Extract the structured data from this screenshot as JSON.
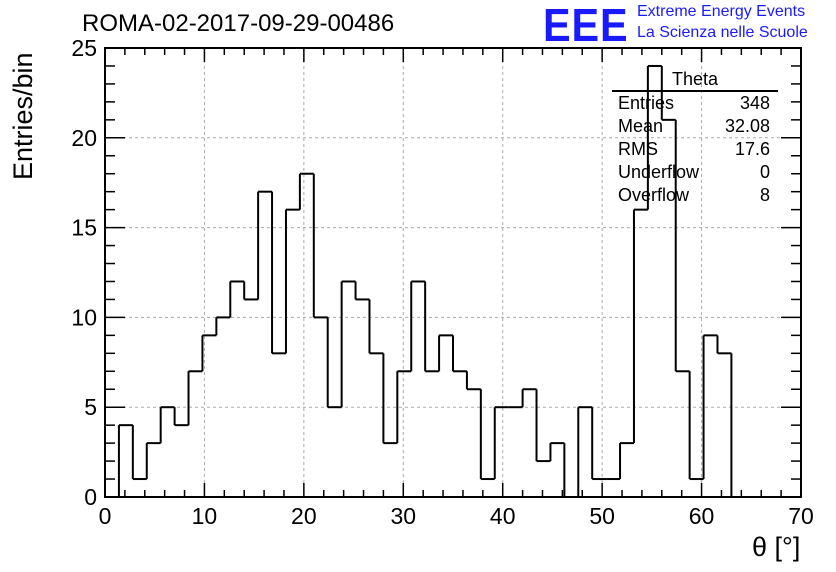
{
  "header": {
    "run_title": "ROMA-02-2017-09-29-00486",
    "logo": "EEE",
    "logo_line1": "Extreme Energy Events",
    "logo_line2": "La Scienza nelle Scuole",
    "logo_color": "#1a1aff"
  },
  "stats_box": {
    "name": "Theta",
    "rows": [
      {
        "label": "Entries",
        "value": "348"
      },
      {
        "label": "Mean",
        "value": "32.08"
      },
      {
        "label": "RMS",
        "value": "17.6"
      },
      {
        "label": "Underflow",
        "value": "0"
      },
      {
        "label": "Overflow",
        "value": "8"
      }
    ]
  },
  "chart_data": {
    "type": "bar",
    "histogram": true,
    "xlabel": "θ [°]",
    "ylabel": "Entries/bin",
    "xlim": [
      0,
      70
    ],
    "ylim": [
      0,
      25
    ],
    "bin_width": 1.4,
    "x_ticks": [
      "0",
      "10",
      "20",
      "30",
      "40",
      "50",
      "60",
      "70"
    ],
    "y_ticks": [
      "0",
      "5",
      "10",
      "15",
      "20",
      "25"
    ],
    "grid": true,
    "values": [
      0,
      4,
      1,
      3,
      5,
      4,
      7,
      9,
      10,
      12,
      11,
      17,
      8,
      16,
      18,
      10,
      5,
      12,
      11,
      8,
      3,
      7,
      12,
      7,
      9,
      7,
      6,
      1,
      5,
      5,
      6,
      2,
      3,
      0,
      5,
      1,
      1,
      3,
      16,
      24,
      21,
      7,
      1,
      9,
      8,
      0,
      0,
      0,
      0,
      0
    ]
  }
}
